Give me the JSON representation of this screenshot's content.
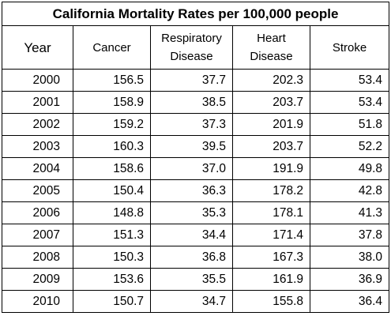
{
  "title": "California Mortality Rates per 100,000 people",
  "columns": {
    "year": "Year",
    "cancer": "Cancer",
    "respiratory_line1": "Respiratory",
    "respiratory_line2": "Disease",
    "heart_line1": "Heart",
    "heart_line2": "Disease",
    "stroke": "Stroke"
  },
  "rows": [
    {
      "year": "2000",
      "cancer": "156.5",
      "respiratory": "37.7",
      "heart": "202.3",
      "stroke": "53.4"
    },
    {
      "year": "2001",
      "cancer": "158.9",
      "respiratory": "38.5",
      "heart": "203.7",
      "stroke": "53.4"
    },
    {
      "year": "2002",
      "cancer": "159.2",
      "respiratory": "37.3",
      "heart": "201.9",
      "stroke": "51.8"
    },
    {
      "year": "2003",
      "cancer": "160.3",
      "respiratory": "39.5",
      "heart": "203.7",
      "stroke": "52.2"
    },
    {
      "year": "2004",
      "cancer": "158.6",
      "respiratory": "37.0",
      "heart": "191.9",
      "stroke": "49.8"
    },
    {
      "year": "2005",
      "cancer": "150.4",
      "respiratory": "36.3",
      "heart": "178.2",
      "stroke": "42.8"
    },
    {
      "year": "2006",
      "cancer": "148.8",
      "respiratory": "35.3",
      "heart": "178.1",
      "stroke": "41.3"
    },
    {
      "year": "2007",
      "cancer": "151.3",
      "respiratory": "34.4",
      "heart": "171.4",
      "stroke": "37.8"
    },
    {
      "year": "2008",
      "cancer": "150.3",
      "respiratory": "36.8",
      "heart": "167.3",
      "stroke": "38.0"
    },
    {
      "year": "2009",
      "cancer": "153.6",
      "respiratory": "35.5",
      "heart": "161.9",
      "stroke": "36.9"
    },
    {
      "year": "2010",
      "cancer": "150.7",
      "respiratory": "34.7",
      "heart": "155.8",
      "stroke": "36.4"
    }
  ]
}
